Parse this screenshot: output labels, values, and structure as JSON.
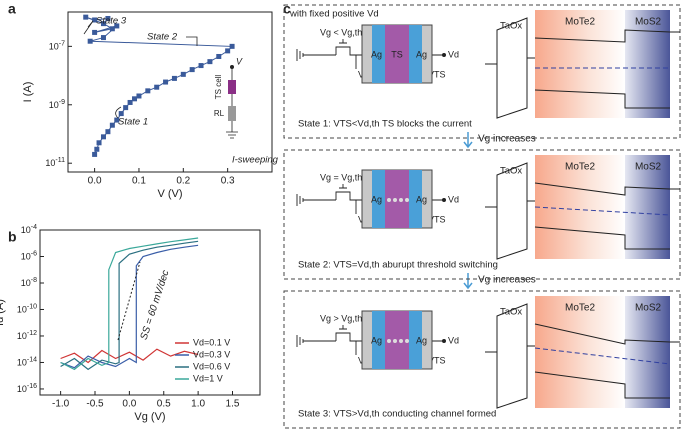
{
  "chart_data": [
    {
      "type": "line",
      "panel_label": "a",
      "x_label": "V (V)",
      "y_label": "I (A)",
      "log_y": true,
      "markers": true,
      "xlim": [
        -0.06,
        0.4
      ],
      "ylim": [
        5e-12,
        1.5e-06
      ],
      "xticks": [
        {
          "value": 0,
          "label": "0.0"
        },
        0.1,
        0.2,
        0.3
      ],
      "yticks": [
        {
          "value": 1e-11,
          "label": "10^-11"
        },
        {
          "value": 1e-09,
          "label": "10^-9"
        },
        {
          "value": 1e-07,
          "label": "10^-7"
        }
      ],
      "series": [
        {
          "color": "#3a5a9a",
          "x": [
            0.0,
            0.005,
            0.01,
            0.02,
            0.03,
            0.04,
            0.05,
            0.06,
            0.07,
            0.08,
            0.09,
            0.1,
            0.12,
            0.14,
            0.16,
            0.18,
            0.2,
            0.22,
            0.24,
            0.26,
            0.28,
            0.3,
            0.31,
            -0.01,
            0.02,
            0.05,
            0.0,
            0.04,
            0.02,
            -0.02,
            0.0,
            0.03
          ],
          "values": [
            2e-11,
            3e-11,
            5e-11,
            8e-11,
            1.2e-10,
            2e-10,
            3e-10,
            5e-10,
            8e-10,
            1.2e-09,
            1.6e-09,
            2e-09,
            3e-09,
            4e-09,
            6e-09,
            8e-09,
            1.1e-08,
            1.6e-08,
            2.2e-08,
            3e-08,
            4.5e-08,
            7e-08,
            1e-07,
            1.5e-07,
            2e-07,
            5e-07,
            3e-07,
            4e-07,
            6e-07,
            1e-06,
            8e-07,
            9e-07
          ]
        }
      ],
      "annotations": [
        "State 3",
        "State 2",
        "State 1",
        "I-sweeping"
      ],
      "inset": {
        "terminal": "V",
        "cell": "TS cell",
        "load": "RL"
      }
    },
    {
      "type": "line",
      "panel_label": "b",
      "x_label": "Vg (V)",
      "y_label": "Id (A)",
      "log_y": true,
      "legend": "lower right",
      "xlim": [
        -1.3,
        1.9
      ],
      "ylim": [
        3.5e-17,
        0.0001
      ],
      "xticks": [
        {
          "value": -1,
          "label": "-1.0"
        },
        -0.5,
        {
          "value": 0,
          "label": "0.0"
        },
        0.5,
        {
          "value": 1,
          "label": "1.0"
        },
        1.5
      ],
      "yticks": [
        {
          "value": 1e-16,
          "label": "10^-16"
        },
        {
          "value": 1e-14,
          "label": "10^-14"
        },
        {
          "value": 1e-12,
          "label": "10^-12"
        },
        {
          "value": 1e-10,
          "label": "10^-10"
        },
        {
          "value": 1e-08,
          "label": "10^-8"
        },
        {
          "value": 1e-06,
          "label": "10^-6"
        },
        {
          "value": 0.0001,
          "label": "10^-4"
        }
      ],
      "series": [
        {
          "name": "Vd=0.1 V",
          "color": "#d03535",
          "x": [
            -1,
            -0.8,
            -0.6,
            -0.4,
            -0.2,
            0,
            0.2,
            0.4,
            0.6,
            0.8,
            1.0
          ],
          "values": [
            2e-14,
            5e-14,
            1e-14,
            8e-14,
            2e-14,
            6e-14,
            1.5e-14,
            1e-13,
            3e-14,
            7e-14,
            4e-14
          ]
        },
        {
          "name": "Vd=0.3 V",
          "color": "#3a5ea8",
          "x": [
            -1,
            -0.8,
            -0.6,
            -0.4,
            -0.2,
            0,
            0.1,
            0.1,
            0.2,
            0.4,
            0.6,
            0.8,
            1.0
          ],
          "values": [
            1e-14,
            4e-15,
            3e-14,
            1e-14,
            5e-15,
            2e-14,
            1e-14,
            2e-07,
            1e-06,
            2e-06,
            3.5e-06,
            5e-06,
            7e-06
          ]
        },
        {
          "name": "Vd=0.6 V",
          "color": "#2a6f80",
          "x": [
            -1,
            -0.8,
            -0.6,
            -0.4,
            -0.2,
            -0.15,
            -0.15,
            0,
            0.2,
            0.4,
            0.6,
            0.8,
            1.0
          ],
          "values": [
            5e-15,
            2e-14,
            3e-15,
            1.5e-14,
            8e-15,
            1e-14,
            3e-07,
            1.5e-06,
            3e-06,
            5e-06,
            7e-06,
            1e-05,
            1.4e-05
          ]
        },
        {
          "name": "Vd=1 V",
          "color": "#3aa89a",
          "x": [
            -1,
            -0.8,
            -0.6,
            -0.4,
            -0.3,
            -0.3,
            -0.2,
            0,
            0.2,
            0.4,
            0.6,
            0.8,
            1.0
          ],
          "values": [
            1e-14,
            3e-15,
            2e-14,
            6e-15,
            1e-14,
            1e-07,
            2e-06,
            4e-06,
            6e-06,
            9e-06,
            1.3e-05,
            1.8e-05,
            2.5e-05
          ]
        }
      ],
      "annotations": [
        "SS = 60 mV/dec"
      ]
    }
  ],
  "diagram": {
    "panel_label": "c",
    "note": "with fixed positive Vd",
    "arrows": [
      "Vg increases",
      "Vg increases"
    ],
    "states": [
      {
        "gate": "Vg < Vg,th",
        "source": "Vd'",
        "ts": "VTS",
        "drain": "Vd",
        "electrode_left": "Ag",
        "electrode_middle": "TS",
        "electrode_right": "Ag",
        "oxide": "TaOx",
        "left_layer": "MoTe2",
        "right_layer": "MoS2",
        "caption": "State 1:  VTS<Vd,th   TS blocks the current"
      },
      {
        "gate": "Vg = Vg,th",
        "source": "Vd'",
        "ts": "VTS",
        "drain": "Vd",
        "electrode_left": "Ag",
        "electrode_right": "Ag",
        "oxide": "TaOx",
        "left_layer": "MoTe2",
        "right_layer": "MoS2",
        "caption": "State 2:  VTS=Vd,th   aburupt threshold switching"
      },
      {
        "gate": "Vg > Vg,th",
        "source": "Vd'",
        "ts": "VTS",
        "drain": "Vd",
        "electrode_left": "Ag",
        "electrode_right": "Ag",
        "oxide": "TaOx",
        "left_layer": "MoTe2",
        "right_layer": "MoS2",
        "caption": "State 3:  VTS>Vd,th  conducting channel formed"
      }
    ]
  }
}
